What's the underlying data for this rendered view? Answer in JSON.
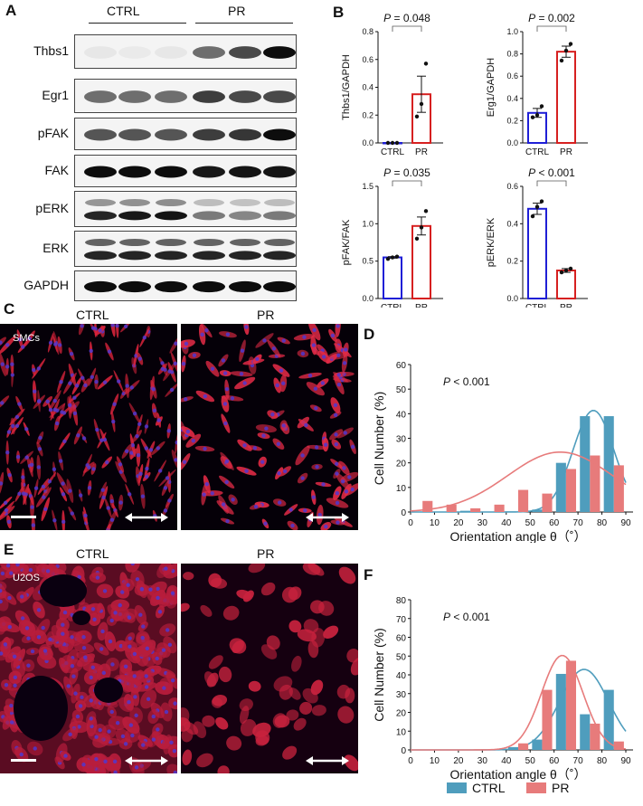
{
  "panels": {
    "a": "A",
    "b": "B",
    "c": "C",
    "d": "D",
    "e": "E",
    "f": "F"
  },
  "western": {
    "groups": [
      "CTRL",
      "PR"
    ],
    "bands": [
      {
        "name": "Thbs1",
        "ctrl": [
          0.05,
          0.04,
          0.05
        ],
        "pr": [
          0.55,
          0.7,
          0.95
        ]
      },
      {
        "name": "Egr1",
        "ctrl": [
          0.55,
          0.55,
          0.55
        ],
        "pr": [
          0.75,
          0.7,
          0.7
        ]
      },
      {
        "name": "pFAK",
        "ctrl": [
          0.65,
          0.65,
          0.65
        ],
        "pr": [
          0.75,
          0.78,
          0.95
        ]
      },
      {
        "name": "FAK",
        "ctrl": [
          0.95,
          0.95,
          0.95
        ],
        "pr": [
          0.9,
          0.92,
          0.92
        ]
      },
      {
        "name": "pERK",
        "ctrl": [
          0.85,
          0.9,
          0.92
        ],
        "pr": [
          0.5,
          0.45,
          0.5
        ]
      },
      {
        "name": "ERK",
        "ctrl": [
          0.85,
          0.85,
          0.85
        ],
        "pr": [
          0.85,
          0.85,
          0.85
        ]
      },
      {
        "name": "GAPDH",
        "ctrl": [
          0.95,
          0.95,
          0.95
        ],
        "pr": [
          0.95,
          0.95,
          0.95
        ]
      }
    ]
  },
  "chart_data": [
    {
      "type": "bar",
      "ylabel": "Thbs1/GAPDH",
      "categories": [
        "CTRL",
        "PR"
      ],
      "values": [
        0.0,
        0.35
      ],
      "points": [
        [
          0.0,
          0.0,
          0.0
        ],
        [
          0.19,
          0.28,
          0.57
        ]
      ],
      "error": [
        0.0,
        0.13
      ],
      "ylim": [
        0,
        0.8
      ],
      "yticks": [
        "0.0",
        "0.2",
        "0.4",
        "0.6",
        "0.8"
      ],
      "pvalue": "P = 0.048"
    },
    {
      "type": "bar",
      "ylabel": "Erg1/GAPDH",
      "categories": [
        "CTRL",
        "PR"
      ],
      "values": [
        0.27,
        0.82
      ],
      "points": [
        [
          0.23,
          0.25,
          0.33
        ],
        [
          0.74,
          0.83,
          0.89
        ]
      ],
      "error": [
        0.04,
        0.05
      ],
      "ylim": [
        0,
        1.0
      ],
      "yticks": [
        "0.0",
        "0.2",
        "0.4",
        "0.6",
        "0.8",
        "1.0"
      ],
      "pvalue": "P = 0.002"
    },
    {
      "type": "bar",
      "ylabel": "pFAK/FAK",
      "categories": [
        "CTRL",
        "PR"
      ],
      "values": [
        0.55,
        0.97
      ],
      "points": [
        [
          0.53,
          0.55,
          0.56
        ],
        [
          0.8,
          0.95,
          1.17
        ]
      ],
      "error": [
        0.01,
        0.12
      ],
      "ylim": [
        0,
        1.5
      ],
      "yticks": [
        "0.0",
        "0.5",
        "1.0",
        "1.5"
      ],
      "pvalue": "P = 0.035"
    },
    {
      "type": "bar",
      "ylabel": "pERK/ERK",
      "categories": [
        "CTRL",
        "PR"
      ],
      "values": [
        0.48,
        0.15
      ],
      "points": [
        [
          0.44,
          0.49,
          0.52
        ],
        [
          0.14,
          0.15,
          0.16
        ]
      ],
      "error": [
        0.03,
        0.01
      ],
      "ylim": [
        0,
        0.6
      ],
      "yticks": [
        "0.0",
        "0.2",
        "0.4",
        "0.6"
      ],
      "pvalue": "P < 0.001"
    },
    {
      "type": "bar",
      "xlabel": "Orientation angle θ（˚）",
      "ylabel": "Cell Number (%)",
      "ylim": [
        0,
        60
      ],
      "yticks": [
        "0",
        "10",
        "20",
        "30",
        "40",
        "50",
        "60"
      ],
      "xticks": [
        "0",
        "10",
        "20",
        "30",
        "40",
        "50",
        "60",
        "70",
        "80",
        "90"
      ],
      "pvalue": "P < 0.001",
      "legend": [
        "CTRL",
        "PR"
      ],
      "series": [
        {
          "name": "CTRL",
          "x": [
            5,
            15,
            25,
            35,
            45,
            55,
            65,
            75,
            85
          ],
          "values": [
            0,
            0,
            0.5,
            0,
            0,
            1,
            20,
            39,
            39
          ]
        },
        {
          "name": "PR",
          "x": [
            5,
            15,
            25,
            35,
            45,
            55,
            65,
            75,
            85
          ],
          "values": [
            4.5,
            3,
            1.5,
            3,
            9,
            7.5,
            17.5,
            23,
            19
          ]
        }
      ]
    },
    {
      "type": "bar",
      "xlabel": "Orientation angle θ（˚）",
      "ylabel": "Cell Number (%)",
      "ylim": [
        0,
        80
      ],
      "yticks": [
        "0",
        "10",
        "20",
        "30",
        "40",
        "50",
        "60",
        "70",
        "80"
      ],
      "xticks": [
        "0",
        "10",
        "20",
        "30",
        "40",
        "50",
        "60",
        "70",
        "80",
        "90"
      ],
      "pvalue": "P < 0.001",
      "legend": [
        "CTRL",
        "PR"
      ],
      "series": [
        {
          "name": "CTRL",
          "x": [
            5,
            15,
            25,
            35,
            45,
            55,
            65,
            75,
            85
          ],
          "values": [
            0,
            0,
            0,
            0,
            1.5,
            5.5,
            40.5,
            19,
            32
          ]
        },
        {
          "name": "PR",
          "x": [
            5,
            15,
            25,
            35,
            45,
            55,
            65,
            75,
            85
          ],
          "values": [
            0,
            0,
            0,
            0,
            3.5,
            32,
            47.5,
            14,
            4.5
          ]
        }
      ]
    }
  ],
  "micrographs": {
    "c": {
      "headers": [
        "CTRL",
        "PR"
      ],
      "tag": "SMCs"
    },
    "e": {
      "headers": [
        "CTRL",
        "PR"
      ],
      "tag": "U2OS"
    }
  },
  "colors": {
    "ctrl_bar": "#1f1fd6",
    "pr_bar": "#d62020",
    "hist_ctrl": "#4f9dbd",
    "hist_pr": "#e77b7b"
  }
}
